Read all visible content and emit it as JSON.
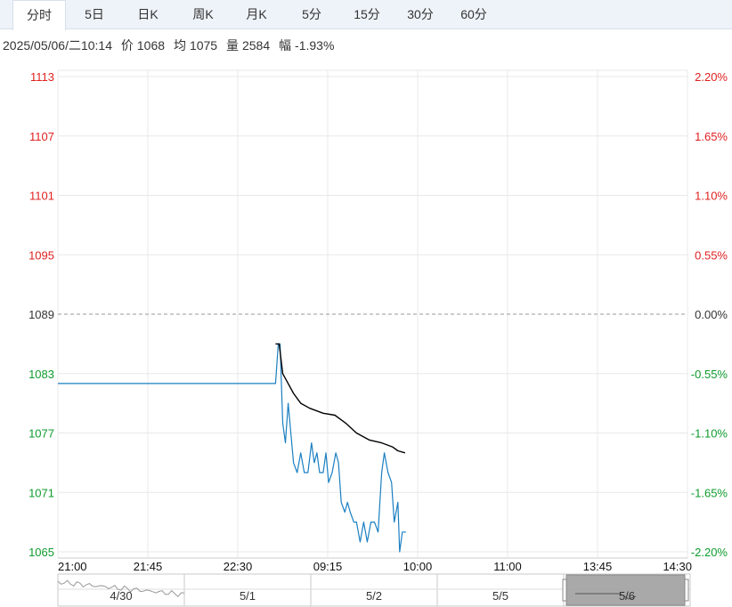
{
  "tabs": [
    {
      "label": "分时",
      "active": true
    },
    {
      "label": "5日",
      "active": false
    },
    {
      "label": "日K",
      "active": false
    },
    {
      "label": "周K",
      "active": false
    },
    {
      "label": "月K",
      "active": false
    },
    {
      "label": "5分",
      "active": false
    },
    {
      "label": "15分",
      "active": false
    },
    {
      "label": "30分",
      "active": false
    },
    {
      "label": "60分",
      "active": false
    }
  ],
  "info": {
    "datetime": "2025/05/06/二10:14",
    "price_label": "价",
    "price": "1068",
    "avg_label": "均",
    "avg": "1075",
    "volume_label": "量",
    "volume": "2584",
    "change_label": "幅",
    "change": "-1.93%"
  },
  "colors": {
    "up": "#e02020",
    "down": "#0e9b2e",
    "price_line": "#1a7fc1",
    "avg_line": "#000000",
    "grid": "#e8e8e8",
    "base_dash": "#999999"
  },
  "chart_data": {
    "type": "line",
    "base_price": 1089,
    "y_ticks": [
      1113,
      1107,
      1101,
      1095,
      1089,
      1083,
      1077,
      1071,
      1065
    ],
    "pct_ticks": [
      "2.20%",
      "1.65%",
      "1.10%",
      "0.55%",
      "0.00%",
      "-0.55%",
      "-1.10%",
      "-1.65%",
      "-2.20%"
    ],
    "ylim": [
      1065,
      1113
    ],
    "x_ticks": [
      "21:00",
      "21:45",
      "22:30",
      "09:15",
      "10:00",
      "11:00",
      "13:45",
      "14:30"
    ],
    "x_range": [
      0,
      7
    ],
    "series": [
      {
        "key": "price",
        "points": [
          [
            0,
            1082
          ],
          [
            2.42,
            1082
          ],
          [
            2.45,
            1086
          ],
          [
            2.47,
            1086
          ],
          [
            2.5,
            1078
          ],
          [
            2.53,
            1076
          ],
          [
            2.56,
            1080
          ],
          [
            2.59,
            1077
          ],
          [
            2.62,
            1074
          ],
          [
            2.66,
            1073
          ],
          [
            2.7,
            1075
          ],
          [
            2.74,
            1073
          ],
          [
            2.78,
            1073
          ],
          [
            2.82,
            1076
          ],
          [
            2.85,
            1074
          ],
          [
            2.88,
            1075
          ],
          [
            2.91,
            1073
          ],
          [
            2.95,
            1073
          ],
          [
            2.98,
            1075
          ],
          [
            3.01,
            1072
          ],
          [
            3.05,
            1073
          ],
          [
            3.09,
            1075
          ],
          [
            3.12,
            1074
          ],
          [
            3.15,
            1070
          ],
          [
            3.19,
            1069
          ],
          [
            3.22,
            1070
          ],
          [
            3.25,
            1069
          ],
          [
            3.29,
            1068
          ],
          [
            3.32,
            1068
          ],
          [
            3.36,
            1066
          ],
          [
            3.4,
            1068
          ],
          [
            3.44,
            1066
          ],
          [
            3.48,
            1068
          ],
          [
            3.52,
            1068
          ],
          [
            3.56,
            1067
          ],
          [
            3.6,
            1073
          ],
          [
            3.63,
            1075
          ],
          [
            3.67,
            1073
          ],
          [
            3.71,
            1072
          ],
          [
            3.74,
            1068
          ],
          [
            3.78,
            1070
          ],
          [
            3.8,
            1065
          ],
          [
            3.83,
            1067
          ],
          [
            3.87,
            1067
          ]
        ]
      },
      {
        "key": "avg",
        "points": [
          [
            2.42,
            1086
          ],
          [
            2.46,
            1086
          ],
          [
            2.5,
            1083
          ],
          [
            2.56,
            1082
          ],
          [
            2.62,
            1081
          ],
          [
            2.7,
            1080
          ],
          [
            2.8,
            1079.5
          ],
          [
            2.95,
            1079
          ],
          [
            3.08,
            1078.8
          ],
          [
            3.2,
            1078
          ],
          [
            3.32,
            1077
          ],
          [
            3.46,
            1076.3
          ],
          [
            3.6,
            1076
          ],
          [
            3.72,
            1075.6
          ],
          [
            3.78,
            1075.2
          ],
          [
            3.86,
            1075
          ]
        ]
      }
    ]
  },
  "date_strip": {
    "labels": [
      "4/30",
      "5/1",
      "5/2",
      "5/5",
      "5/6"
    ],
    "selected": "5/6"
  }
}
